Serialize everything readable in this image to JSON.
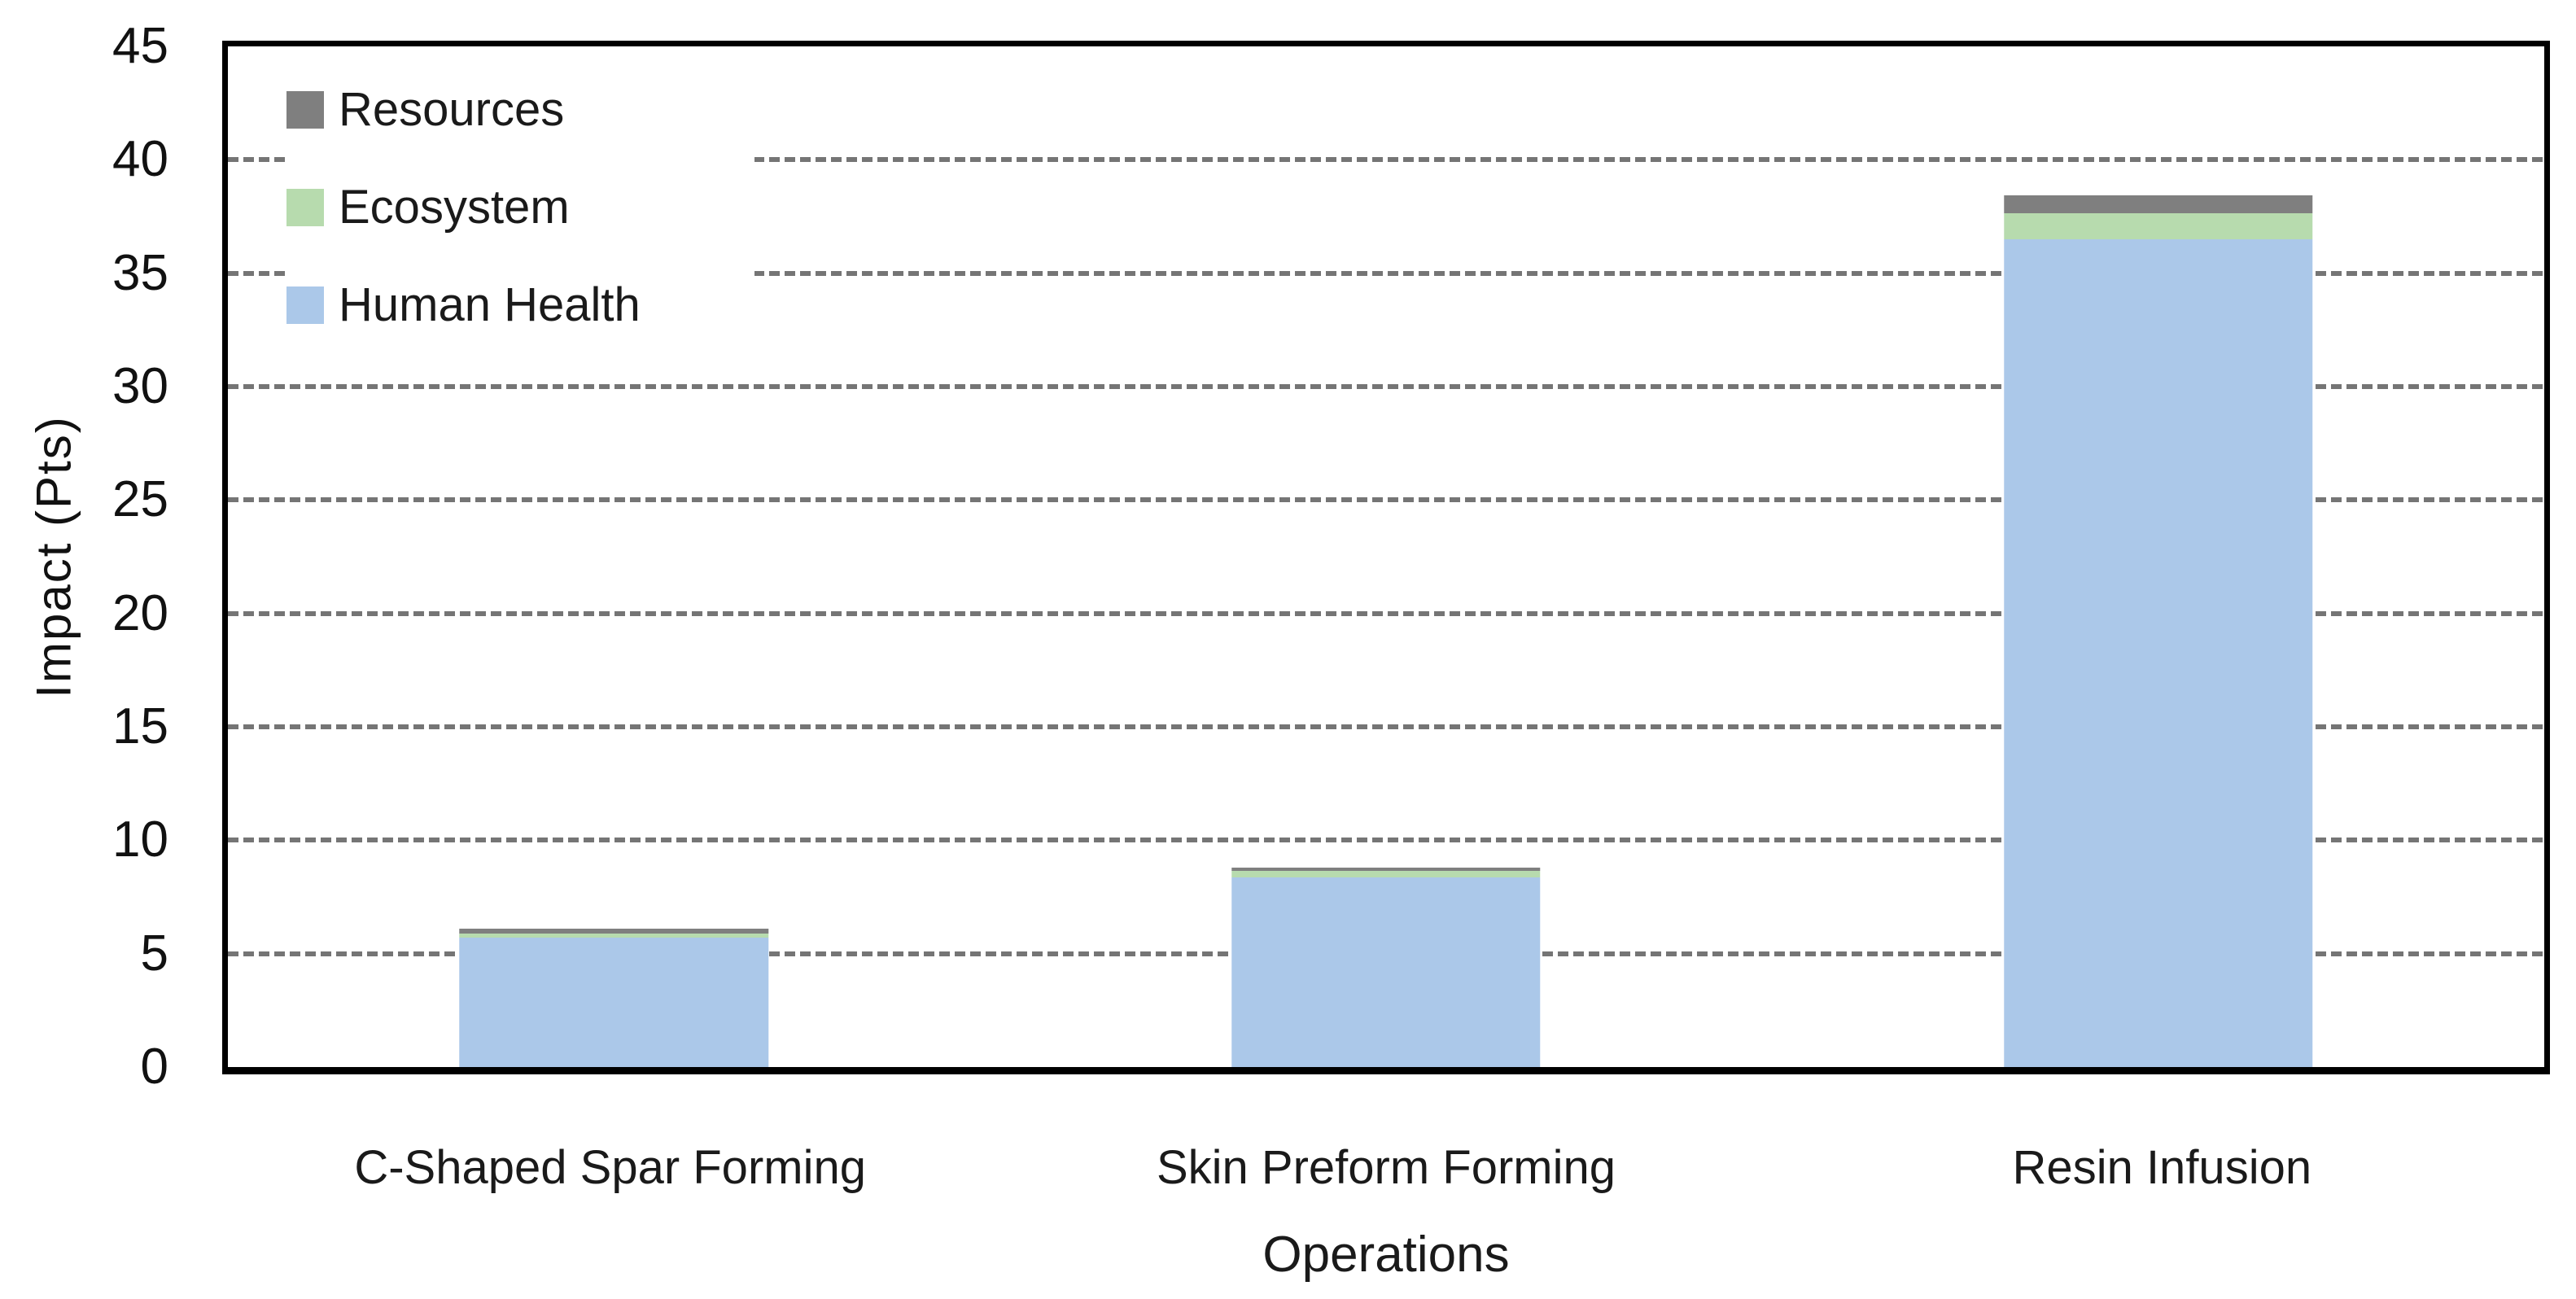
{
  "chart_data": {
    "type": "bar",
    "stacked": true,
    "title": "",
    "xlabel": "Operations",
    "ylabel": "Impact (Pts)",
    "categories": [
      "C-Shaped Spar Forming",
      "Skin Preform Forming",
      "Resin Infusion"
    ],
    "series": [
      {
        "name": "Resources",
        "color": "#7F7F7F",
        "values": [
          0.2,
          0.15,
          0.8
        ]
      },
      {
        "name": "Ecosystem",
        "color": "#B7DBAE",
        "values": [
          0.2,
          0.3,
          1.15
        ]
      },
      {
        "name": "Human Health",
        "color": "#ABC8E9",
        "values": [
          5.7,
          8.35,
          36.5
        ]
      }
    ],
    "stack_order_bottom_to_top": [
      "Human Health",
      "Ecosystem",
      "Resources"
    ],
    "bar_totals": [
      6.1,
      8.8,
      38.45
    ],
    "ylim": [
      0,
      45
    ],
    "ytick_step": 5,
    "yticks": [
      0,
      5,
      10,
      15,
      20,
      25,
      30,
      35,
      40,
      45
    ],
    "grid": "horizontal dashed gray lines at every 5 pts, drawn behind bars and interrupted by legend box",
    "gridline_color": "#757575",
    "axis_color": "#000000",
    "background_color": "#FFFFFF",
    "legend_position": "inside top-left"
  }
}
